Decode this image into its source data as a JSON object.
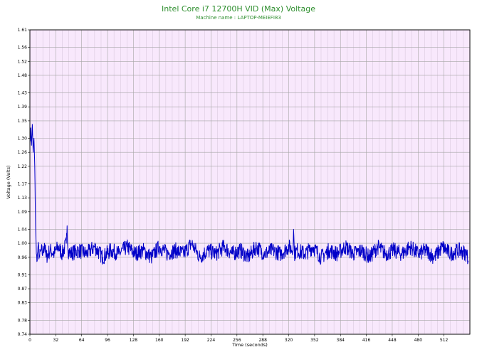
{
  "chart_data": {
    "type": "line",
    "title": "Intel Core i7 12700H VID (Max) Voltage",
    "subtitle": "Machine name : LAPTOP-MEIEFI83",
    "xlabel": "Time (seconds)",
    "ylabel": "Voltage (Volts)",
    "xlim": [
      0,
      544
    ],
    "ylim": [
      0.74,
      1.61
    ],
    "x_ticks": [
      0,
      32,
      64,
      96,
      128,
      160,
      192,
      224,
      256,
      288,
      320,
      352,
      384,
      416,
      448,
      480,
      512
    ],
    "x_tick_labels": [
      "0",
      "32",
      "64",
      "96",
      "128",
      "160",
      "192",
      "224",
      "256",
      "288",
      "320",
      "352",
      "384",
      "416",
      "448",
      "480",
      "512"
    ],
    "y_ticks": [
      0.74,
      0.78,
      0.83,
      0.87,
      0.91,
      0.96,
      1.0,
      1.04,
      1.09,
      1.13,
      1.17,
      1.22,
      1.26,
      1.3,
      1.35,
      1.39,
      1.43,
      1.48,
      1.52,
      1.56,
      1.61
    ],
    "y_tick_labels": [
      "0.74",
      "0.78",
      "0.83",
      "0.87",
      "0.91",
      "0.96",
      "1.00",
      "1.04",
      "1.09",
      "1.13",
      "1.17",
      "1.22",
      "1.26",
      "1.30",
      "1.35",
      "1.39",
      "1.43",
      "1.48",
      "1.52",
      "1.56",
      "1.61"
    ],
    "grid": true,
    "minor_grid": true,
    "legend": "none",
    "colors": {
      "line": "#0000c8",
      "plot_background": "#f8e8fc",
      "grid_major": "#a6a6a6",
      "grid_minor": "#d3c3d8",
      "title": "#2f8f2f"
    },
    "series": [
      {
        "x": [
          0,
          1,
          2,
          3,
          4,
          5,
          6,
          7,
          8,
          9,
          10,
          12,
          14,
          16,
          18,
          20,
          25,
          30,
          35,
          40,
          45,
          46,
          47,
          50,
          60,
          70,
          80,
          90,
          100,
          110,
          120,
          130,
          140,
          150,
          160,
          170,
          180,
          190,
          200,
          210,
          220,
          230,
          240,
          250,
          260,
          270,
          280,
          290,
          300,
          310,
          320,
          325,
          326,
          327,
          330,
          340,
          350,
          360,
          370,
          380,
          390,
          400,
          410,
          420,
          430,
          440,
          450,
          460,
          470,
          480,
          490,
          500,
          510,
          520,
          530,
          540,
          542
        ],
        "y": [
          1.29,
          1.33,
          1.28,
          1.34,
          1.26,
          1.3,
          1.22,
          1.05,
          0.97,
          0.95,
          0.99,
          0.96,
          0.98,
          0.97,
          1.0,
          0.96,
          0.98,
          0.97,
          0.99,
          0.97,
          1.0,
          1.05,
          0.98,
          0.97,
          0.98,
          0.97,
          0.99,
          0.96,
          0.98,
          0.97,
          0.99,
          0.97,
          0.98,
          0.96,
          0.99,
          0.97,
          0.98,
          0.97,
          1.0,
          0.96,
          0.98,
          0.97,
          0.99,
          0.97,
          0.98,
          0.96,
          0.99,
          0.97,
          0.98,
          0.97,
          0.99,
          0.98,
          1.04,
          0.97,
          0.98,
          0.97,
          0.99,
          0.96,
          0.98,
          0.97,
          0.99,
          0.97,
          0.98,
          0.96,
          0.99,
          0.97,
          0.98,
          0.97,
          0.99,
          0.97,
          0.98,
          0.96,
          0.99,
          0.97,
          0.98,
          0.97,
          0.95
        ]
      }
    ]
  }
}
